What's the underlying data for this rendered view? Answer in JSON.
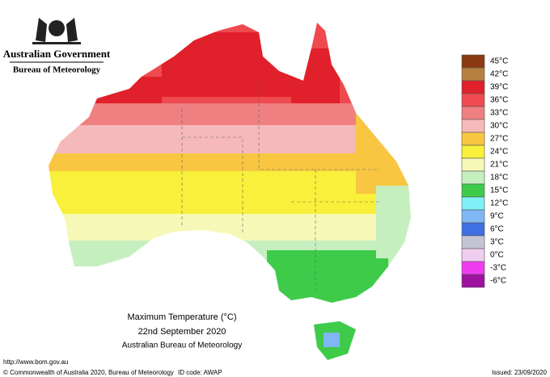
{
  "header": {
    "title": "Australian Government",
    "subtitle": "Bureau of Meteorology"
  },
  "map": {
    "title": "Maximum Temperature (°C)",
    "date": "22nd September 2020",
    "source": "Australian Bureau of Meteorology"
  },
  "legend": [
    {
      "label": "45°C",
      "color": "#8b3a12"
    },
    {
      "label": "42°C",
      "color": "#b5803f"
    },
    {
      "label": "39°C",
      "color": "#e0202a"
    },
    {
      "label": "36°C",
      "color": "#ee4a50"
    },
    {
      "label": "33°C",
      "color": "#f07f82"
    },
    {
      "label": "30°C",
      "color": "#f6b9b9"
    },
    {
      "label": "27°C",
      "color": "#f8c640"
    },
    {
      "label": "24°C",
      "color": "#f8f03a"
    },
    {
      "label": "21°C",
      "color": "#f6f8b8"
    },
    {
      "label": "18°C",
      "color": "#c6efc0"
    },
    {
      "label": "15°C",
      "color": "#3ecb4a"
    },
    {
      "label": "12°C",
      "color": "#7ff0f6"
    },
    {
      "label": "9°C",
      "color": "#7fb6f4"
    },
    {
      "label": "6°C",
      "color": "#3f6fe0"
    },
    {
      "label": "3°C",
      "color": "#c4c4d4"
    },
    {
      "label": "0°C",
      "color": "#efcdee"
    },
    {
      "label": "-3°C",
      "color": "#f03cf0"
    },
    {
      "label": "-6°C",
      "color": "#9e12a0"
    }
  ],
  "footer": {
    "url": "http://www.bom.gov.au",
    "copyright": "© Commonwealth of Australia 2020, Bureau of Meteorology",
    "id_code": "ID code: AWAP",
    "issued": "Issued: 23/09/2020"
  }
}
